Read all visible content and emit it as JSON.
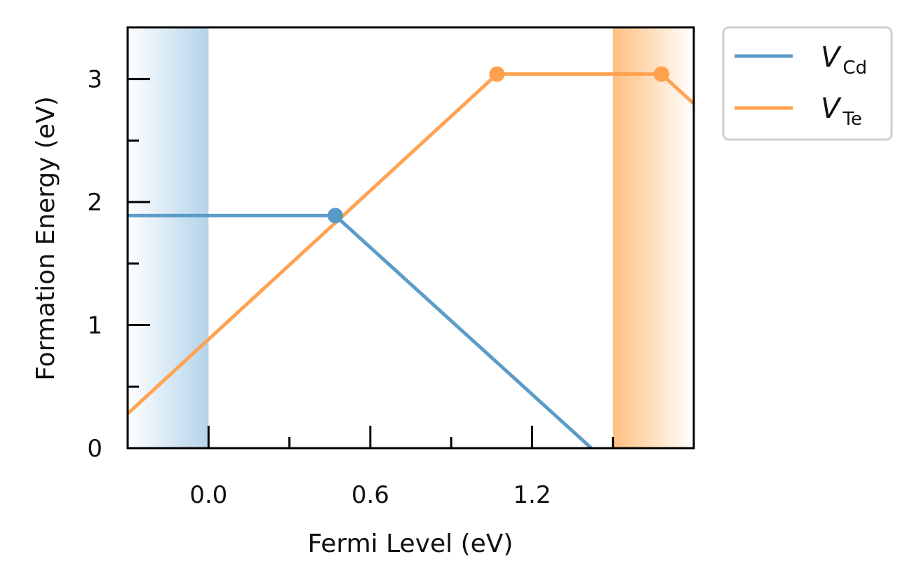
{
  "chart_data": {
    "type": "line",
    "title": "",
    "xlabel": "Fermi Level (eV)",
    "ylabel": "Formation Energy (eV)",
    "xlim": [
      -0.3,
      1.8
    ],
    "ylim": [
      0,
      3.42
    ],
    "xticks": [
      0.0,
      0.6,
      1.2
    ],
    "xtick_labels": [
      "0.0",
      "0.6",
      "1.2"
    ],
    "yticks": [
      0,
      1,
      2,
      3
    ],
    "ytick_labels": [
      "0",
      "1",
      "2",
      "3"
    ],
    "grid": false,
    "legend_position": "outside-top-right",
    "shaded_regions": [
      {
        "name": "valence-band",
        "x": [
          -0.3,
          0.0
        ],
        "color": "#b3d3e9"
      },
      {
        "name": "conduction-band",
        "x": [
          1.5,
          1.8
        ],
        "color": "#ffbf80"
      }
    ],
    "series": [
      {
        "key": "vcd",
        "label_main": "V",
        "label_sub": "Cd",
        "color": "#5799c7",
        "x": [
          -0.3,
          0.47,
          1.42
        ],
        "y": [
          1.89,
          1.89,
          0.0
        ],
        "transition_points": [
          {
            "x": 0.47,
            "y": 1.89
          }
        ]
      },
      {
        "key": "vte",
        "label_main": "V",
        "label_sub": "Te",
        "color": "#ffa04c",
        "x": [
          -0.3,
          1.07,
          1.68,
          1.8
        ],
        "y": [
          0.28,
          3.04,
          3.04,
          2.8
        ],
        "transition_points": [
          {
            "x": 1.07,
            "y": 3.04
          },
          {
            "x": 1.68,
            "y": 3.04
          }
        ]
      }
    ]
  }
}
